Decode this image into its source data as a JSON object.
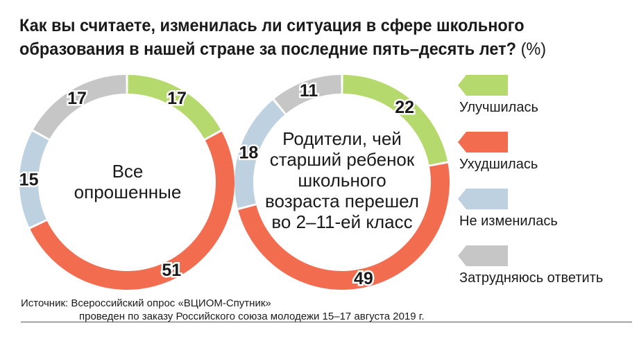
{
  "title": "Как вы считаете, изменилась ли ситуация в сфере школьного образования в нашей стране за последние пять–десять лет?",
  "unit": "(%)",
  "colors": {
    "improved": "#b5d96c",
    "worsened": "#f26d50",
    "unchanged": "#bdd1e0",
    "undecided": "#c6c6c6"
  },
  "legend": [
    {
      "label": "Улучшилась",
      "color": "#b5d96c"
    },
    {
      "label": "Ухудшилась",
      "color": "#f26d50"
    },
    {
      "label": "Не изменилась",
      "color": "#bdd1e0"
    },
    {
      "label": "Затрудняюсь ответить",
      "color": "#c6c6c6"
    }
  ],
  "chart_data": [
    {
      "type": "pie",
      "subtype": "donut",
      "center_label_lines": [
        "Все",
        "опрошенные"
      ],
      "categories": [
        "Улучшилась",
        "Ухудшилась",
        "Не изменилась",
        "Затрудняюсь ответить"
      ],
      "values": [
        17,
        51,
        15,
        17
      ]
    },
    {
      "type": "pie",
      "subtype": "donut",
      "center_label_lines": [
        "Родители, чей",
        "старший ребенок",
        "школьного",
        "возраста перешел",
        "во 2–11-ей класс"
      ],
      "categories": [
        "Улучшилась",
        "Ухудшилась",
        "Не изменилась",
        "Затрудняюсь ответить"
      ],
      "values": [
        22,
        49,
        18,
        11
      ]
    }
  ],
  "source": {
    "line1": "Источник: Всероссийский опрос «ВЦИОМ-Спутник»",
    "line2": "проведен по заказу Российского союза молодежи 15–17 августа 2019 г."
  }
}
